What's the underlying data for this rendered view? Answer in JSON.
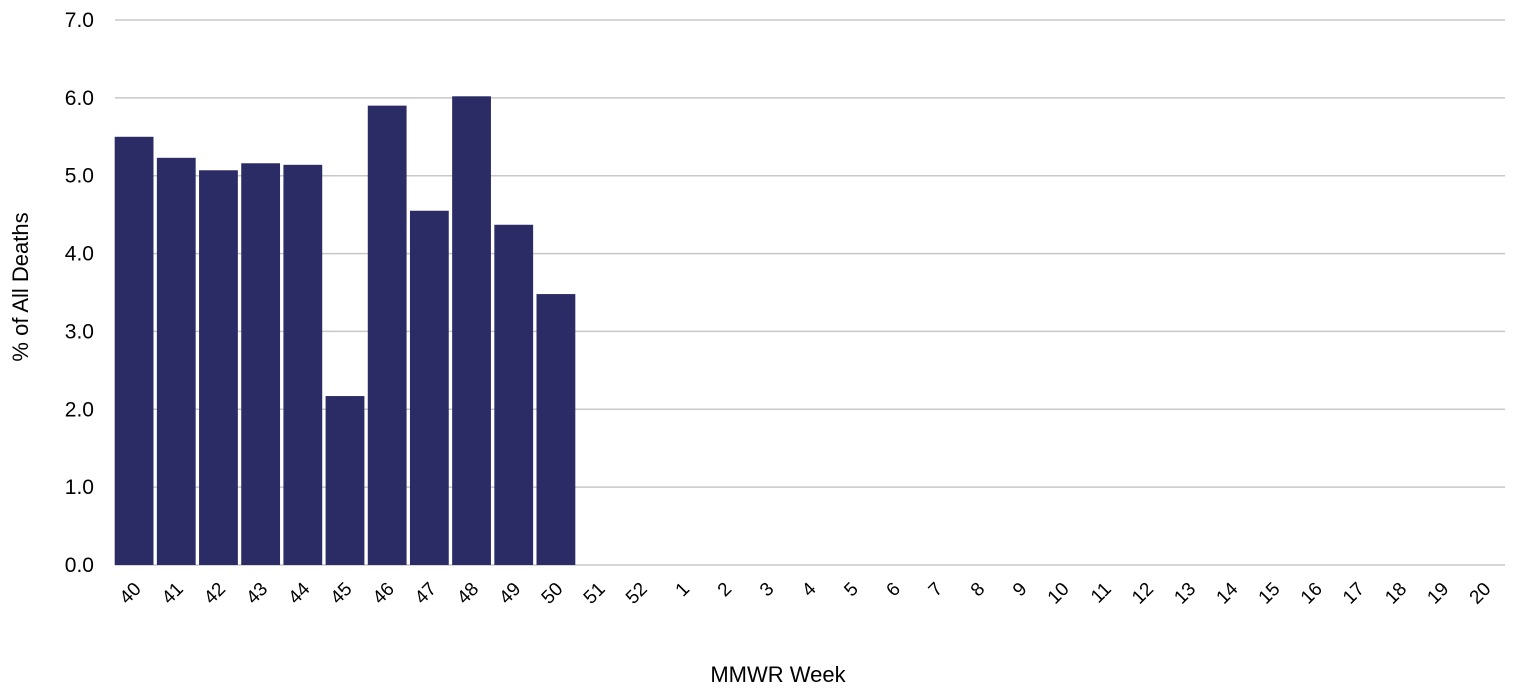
{
  "chart_data": {
    "type": "bar",
    "xlabel": "MMWR Week",
    "ylabel": "% of All Deaths",
    "ylim": [
      0,
      7
    ],
    "y_ticks": [
      "0.0",
      "1.0",
      "2.0",
      "3.0",
      "4.0",
      "5.0",
      "6.0",
      "7.0"
    ],
    "categories": [
      "40",
      "41",
      "42",
      "43",
      "44",
      "45",
      "46",
      "47",
      "48",
      "49",
      "50",
      "51",
      "52",
      "1",
      "2",
      "3",
      "4",
      "5",
      "6",
      "7",
      "8",
      "9",
      "10",
      "11",
      "12",
      "13",
      "14",
      "15",
      "16",
      "17",
      "18",
      "19",
      "20"
    ],
    "values": [
      5.5,
      5.23,
      5.07,
      5.16,
      5.14,
      2.17,
      5.9,
      4.55,
      6.02,
      4.37,
      3.48,
      null,
      null,
      null,
      null,
      null,
      null,
      null,
      null,
      null,
      null,
      null,
      null,
      null,
      null,
      null,
      null,
      null,
      null,
      null,
      null,
      null,
      null
    ],
    "grid": true,
    "legend": "none",
    "colors": {
      "bar": "#2b2c66",
      "grid": "#c8c8c8"
    }
  }
}
